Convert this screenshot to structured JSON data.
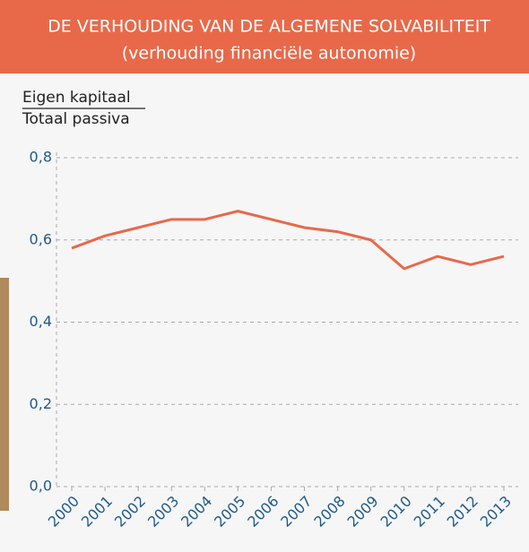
{
  "chart_data": {
    "type": "line",
    "title": "DE VERHOUDING VAN DE ALGEMENE SOLVABILITEIT",
    "subtitle": "(verhouding financiële autonomie)",
    "y_label_numerator": "Eigen kapitaal",
    "y_label_denominator": "Totaal passiva",
    "categories": [
      "2000",
      "2001",
      "2002",
      "2003",
      "2004",
      "2005",
      "2006",
      "2007",
      "2008",
      "2009",
      "2010",
      "2011",
      "2012",
      "2013"
    ],
    "values": [
      0.58,
      0.61,
      0.63,
      0.65,
      0.65,
      0.67,
      0.65,
      0.63,
      0.62,
      0.6,
      0.53,
      0.56,
      0.54,
      0.56
    ],
    "color": "#e8694a",
    "ylim": [
      0,
      0.8
    ],
    "yticks": [
      {
        "value": 0,
        "label": "0,0"
      },
      {
        "value": 0.2,
        "label": "0,2"
      },
      {
        "value": 0.4,
        "label": "0,4"
      },
      {
        "value": 0.6,
        "label": "0,6"
      },
      {
        "value": 0.8,
        "label": "0,8"
      }
    ],
    "grid": true
  }
}
